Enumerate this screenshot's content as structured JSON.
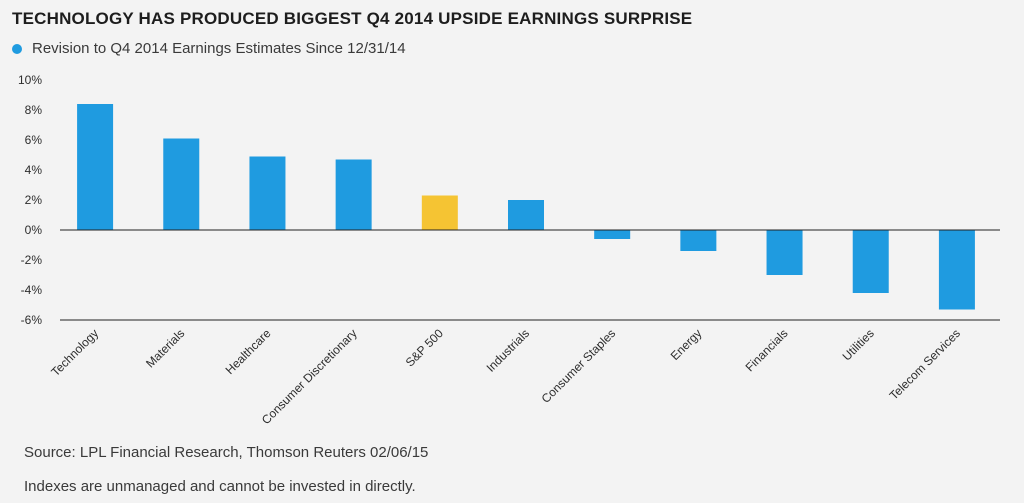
{
  "title": "TECHNOLOGY HAS PRODUCED BIGGEST Q4 2014 UPSIDE EARNINGS SURPRISE",
  "legend": {
    "label": "Revision to Q4 2014 Earnings Estimates Since 12/31/14",
    "color": "#1f9be0"
  },
  "footer": {
    "source": "Source: LPL Financial Research, Thomson Reuters 02/06/15",
    "disclaimer": "Indexes are unmanaged and cannot be invested in directly."
  },
  "chart_data": {
    "type": "bar",
    "title": "TECHNOLOGY HAS PRODUCED BIGGEST Q4 2014 UPSIDE EARNINGS SURPRISE",
    "xlabel": "",
    "ylabel": "",
    "ylim": [
      -6,
      10
    ],
    "yticks": [
      10,
      8,
      6,
      4,
      2,
      0,
      -2,
      -4,
      -6
    ],
    "ytick_labels": [
      "10%",
      "8%",
      "6%",
      "4%",
      "2%",
      "0%",
      "-2%",
      "-4%",
      "-6%"
    ],
    "categories": [
      "Technology",
      "Materials",
      "Healthcare",
      "Consumer Discretionary",
      "S&P 500",
      "Industrials",
      "Consumer Staples",
      "Energy",
      "Financials",
      "Utilities",
      "Telecom Services"
    ],
    "series": [
      {
        "name": "Revision to Q4 2014 Earnings Estimates Since 12/31/14",
        "values": [
          8.4,
          6.1,
          4.9,
          4.7,
          2.3,
          2.0,
          -0.6,
          -1.4,
          -3.0,
          -4.2,
          -5.3
        ]
      }
    ],
    "colors": {
      "default": "#1f9be0",
      "highlight": "#f5c433",
      "highlight_category": "S&P 500",
      "baseline": "#222222"
    },
    "grid": false,
    "legend_position": "top-left"
  }
}
